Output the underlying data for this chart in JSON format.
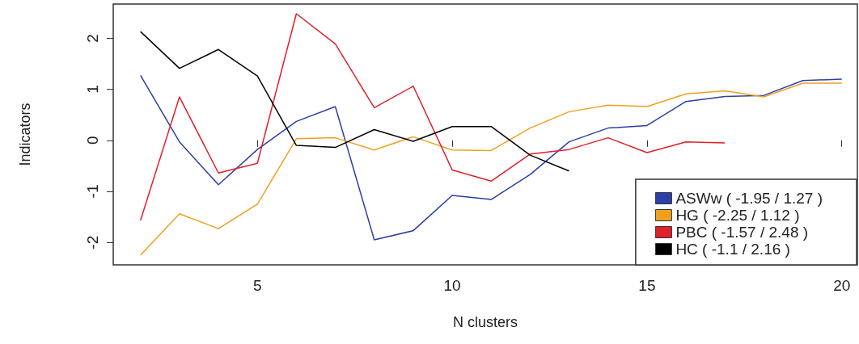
{
  "chart_data": {
    "type": "line",
    "xlabel": "N clusters",
    "ylabel": "Indicators",
    "x": [
      2,
      3,
      4,
      5,
      6,
      7,
      8,
      9,
      10,
      11,
      12,
      13,
      14,
      15,
      16,
      17,
      18,
      19,
      20
    ],
    "series": [
      {
        "name": "ASWw ( -1.95 / 1.27 )",
        "color": "#2b3fa8",
        "values": [
          1.27,
          -0.03,
          -0.87,
          -0.18,
          0.37,
          0.66,
          -1.95,
          -1.77,
          -1.08,
          -1.16,
          -0.67,
          -0.03,
          0.24,
          0.29,
          0.76,
          0.86,
          0.88,
          1.17,
          1.2
        ]
      },
      {
        "name": "HG ( -2.25 / 1.12 )",
        "color": "#f0a020",
        "values": [
          -2.25,
          -1.44,
          -1.73,
          -1.25,
          0.03,
          0.05,
          -0.19,
          0.07,
          -0.19,
          -0.2,
          0.24,
          0.56,
          0.69,
          0.66,
          0.91,
          0.97,
          0.85,
          1.12,
          1.12
        ]
      },
      {
        "name": "PBC ( -1.57 / 2.48 )",
        "color": "#e0202a",
        "values": [
          -1.57,
          0.85,
          -0.64,
          -0.45,
          2.48,
          1.89,
          0.64,
          1.06,
          -0.58,
          -0.8,
          -0.27,
          -0.18,
          0.05,
          -0.24,
          -0.03,
          -0.05,
          null,
          null,
          null
        ]
      },
      {
        "name": "HC ( -1.1 / 2.16 )",
        "color": "#000000",
        "values": [
          2.13,
          1.41,
          1.78,
          1.26,
          -0.1,
          -0.14,
          0.21,
          -0.02,
          0.27,
          0.27,
          -0.29,
          -0.6,
          null,
          null,
          null,
          null,
          null,
          null,
          null
        ]
      }
    ],
    "xlim": [
      1.3,
      20.4
    ],
    "xticks": [
      5,
      10,
      15,
      20
    ],
    "ylim": [
      -2.44,
      2.67
    ],
    "yticks": [
      -2,
      -1,
      0,
      1,
      2
    ],
    "grid": false,
    "legend": "bottom right",
    "marker": "none",
    "line_style": "solid"
  }
}
